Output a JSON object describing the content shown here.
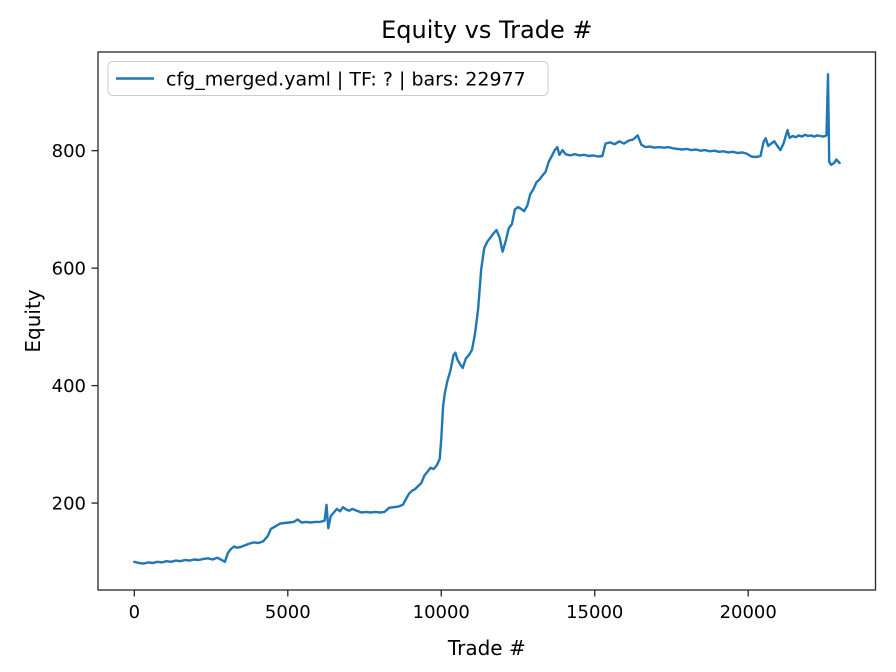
{
  "figure": {
    "background": "#ffffff",
    "spine_color": "#262626",
    "text_color": "#000000"
  },
  "chart_data": {
    "type": "line",
    "title": "Equity vs Trade #",
    "xlabel": "Trade #",
    "ylabel": "Equity",
    "grid": false,
    "legend_position": "upper left",
    "legend": [
      {
        "label": "cfg_merged.yaml | TF: ? | bars: 22977",
        "color": "#1f77b4"
      }
    ],
    "line_color": "#1f77b4",
    "line_width": 2.4,
    "xlim": [
      -1183,
      24147
    ],
    "ylim": [
      52,
      968
    ],
    "x_ticks": [
      {
        "value": 0,
        "label": "0"
      },
      {
        "value": 5000,
        "label": "5000"
      },
      {
        "value": 10000,
        "label": "10000"
      },
      {
        "value": 15000,
        "label": "15000"
      },
      {
        "value": 20000,
        "label": "20000"
      }
    ],
    "y_ticks": [
      {
        "value": 200,
        "label": "200"
      },
      {
        "value": 400,
        "label": "400"
      },
      {
        "value": 600,
        "label": "600"
      },
      {
        "value": 800,
        "label": "800"
      }
    ],
    "series": [
      {
        "name": "cfg_merged.yaml | TF: ? | bars: 22977",
        "points": [
          [
            0,
            100
          ],
          [
            150,
            98
          ],
          [
            300,
            97
          ],
          [
            450,
            99
          ],
          [
            600,
            98
          ],
          [
            750,
            100
          ],
          [
            900,
            99
          ],
          [
            1050,
            101
          ],
          [
            1200,
            100
          ],
          [
            1350,
            102
          ],
          [
            1500,
            101
          ],
          [
            1650,
            103
          ],
          [
            1800,
            102
          ],
          [
            1950,
            104
          ],
          [
            2100,
            103
          ],
          [
            2250,
            105
          ],
          [
            2400,
            106
          ],
          [
            2550,
            104
          ],
          [
            2700,
            107
          ],
          [
            2850,
            103
          ],
          [
            2950,
            100
          ],
          [
            3050,
            115
          ],
          [
            3150,
            122
          ],
          [
            3250,
            126
          ],
          [
            3350,
            124
          ],
          [
            3450,
            125
          ],
          [
            3600,
            128
          ],
          [
            3750,
            131
          ],
          [
            3900,
            133
          ],
          [
            4050,
            132
          ],
          [
            4200,
            135
          ],
          [
            4350,
            144
          ],
          [
            4450,
            156
          ],
          [
            4550,
            159
          ],
          [
            4650,
            162
          ],
          [
            4750,
            165
          ],
          [
            4900,
            166
          ],
          [
            5050,
            167
          ],
          [
            5200,
            168
          ],
          [
            5320,
            172
          ],
          [
            5450,
            167
          ],
          [
            5600,
            168
          ],
          [
            5750,
            167
          ],
          [
            5900,
            168
          ],
          [
            6050,
            168
          ],
          [
            6200,
            170
          ],
          [
            6260,
            197
          ],
          [
            6320,
            157
          ],
          [
            6400,
            178
          ],
          [
            6500,
            184
          ],
          [
            6600,
            190
          ],
          [
            6700,
            186
          ],
          [
            6800,
            193
          ],
          [
            6900,
            189
          ],
          [
            7000,
            187
          ],
          [
            7100,
            190
          ],
          [
            7250,
            187
          ],
          [
            7400,
            184
          ],
          [
            7550,
            185
          ],
          [
            7700,
            184
          ],
          [
            7850,
            185
          ],
          [
            8000,
            184
          ],
          [
            8150,
            185
          ],
          [
            8300,
            192
          ],
          [
            8450,
            193
          ],
          [
            8600,
            194
          ],
          [
            8750,
            197
          ],
          [
            8850,
            207
          ],
          [
            8950,
            216
          ],
          [
            9050,
            221
          ],
          [
            9150,
            224
          ],
          [
            9250,
            229
          ],
          [
            9350,
            234
          ],
          [
            9450,
            247
          ],
          [
            9550,
            253
          ],
          [
            9650,
            260
          ],
          [
            9750,
            258
          ],
          [
            9850,
            264
          ],
          [
            9950,
            275
          ],
          [
            10000,
            310
          ],
          [
            10060,
            365
          ],
          [
            10120,
            388
          ],
          [
            10200,
            408
          ],
          [
            10300,
            426
          ],
          [
            10400,
            452
          ],
          [
            10460,
            456
          ],
          [
            10530,
            444
          ],
          [
            10620,
            436
          ],
          [
            10700,
            430
          ],
          [
            10800,
            446
          ],
          [
            10900,
            452
          ],
          [
            11000,
            461
          ],
          [
            11100,
            488
          ],
          [
            11200,
            530
          ],
          [
            11300,
            598
          ],
          [
            11400,
            634
          ],
          [
            11500,
            645
          ],
          [
            11600,
            652
          ],
          [
            11700,
            659
          ],
          [
            11800,
            665
          ],
          [
            11900,
            652
          ],
          [
            12000,
            628
          ],
          [
            12100,
            646
          ],
          [
            12200,
            668
          ],
          [
            12300,
            675
          ],
          [
            12400,
            700
          ],
          [
            12500,
            704
          ],
          [
            12600,
            701
          ],
          [
            12700,
            697
          ],
          [
            12800,
            706
          ],
          [
            12900,
            726
          ],
          [
            13000,
            734
          ],
          [
            13100,
            746
          ],
          [
            13200,
            751
          ],
          [
            13300,
            758
          ],
          [
            13400,
            764
          ],
          [
            13500,
            781
          ],
          [
            13600,
            791
          ],
          [
            13700,
            801
          ],
          [
            13780,
            806
          ],
          [
            13850,
            793
          ],
          [
            13950,
            801
          ],
          [
            14050,
            794
          ],
          [
            14200,
            792
          ],
          [
            14350,
            794
          ],
          [
            14500,
            792
          ],
          [
            14650,
            793
          ],
          [
            14800,
            791
          ],
          [
            14950,
            792
          ],
          [
            15100,
            790
          ],
          [
            15250,
            791
          ],
          [
            15350,
            812
          ],
          [
            15500,
            814
          ],
          [
            15650,
            811
          ],
          [
            15800,
            816
          ],
          [
            15950,
            812
          ],
          [
            16100,
            817
          ],
          [
            16250,
            819
          ],
          [
            16400,
            826
          ],
          [
            16520,
            810
          ],
          [
            16650,
            806
          ],
          [
            16800,
            807
          ],
          [
            16950,
            805
          ],
          [
            17100,
            806
          ],
          [
            17250,
            805
          ],
          [
            17400,
            806
          ],
          [
            17550,
            804
          ],
          [
            17700,
            803
          ],
          [
            17850,
            802
          ],
          [
            18000,
            803
          ],
          [
            18150,
            801
          ],
          [
            18300,
            802
          ],
          [
            18450,
            800
          ],
          [
            18600,
            801
          ],
          [
            18750,
            799
          ],
          [
            18900,
            800
          ],
          [
            19050,
            798
          ],
          [
            19200,
            799
          ],
          [
            19350,
            797
          ],
          [
            19500,
            798
          ],
          [
            19650,
            796
          ],
          [
            19800,
            797
          ],
          [
            19950,
            795
          ],
          [
            20100,
            790
          ],
          [
            20250,
            789
          ],
          [
            20400,
            791
          ],
          [
            20500,
            815
          ],
          [
            20570,
            821
          ],
          [
            20650,
            808
          ],
          [
            20750,
            812
          ],
          [
            20850,
            816
          ],
          [
            20950,
            808
          ],
          [
            21050,
            801
          ],
          [
            21150,
            812
          ],
          [
            21280,
            835
          ],
          [
            21350,
            822
          ],
          [
            21450,
            825
          ],
          [
            21550,
            823
          ],
          [
            21650,
            826
          ],
          [
            21750,
            824
          ],
          [
            21850,
            827
          ],
          [
            21950,
            825
          ],
          [
            22050,
            826
          ],
          [
            22150,
            824
          ],
          [
            22250,
            826
          ],
          [
            22350,
            825
          ],
          [
            22450,
            824
          ],
          [
            22550,
            826
          ],
          [
            22600,
            930
          ],
          [
            22640,
            781
          ],
          [
            22700,
            776
          ],
          [
            22800,
            779
          ],
          [
            22870,
            785
          ],
          [
            22977,
            779
          ]
        ]
      }
    ]
  }
}
